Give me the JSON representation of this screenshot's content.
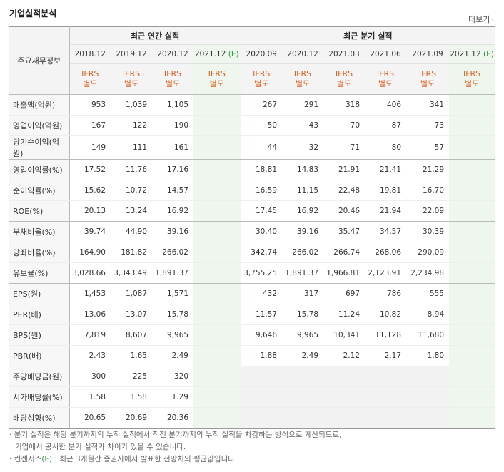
{
  "header": {
    "title": "기업실적분석",
    "more_label": "더보기"
  },
  "table": {
    "corner_label": "주요재무정보",
    "annual_label": "최근 연간 실적",
    "quarter_label": "최근 분기 실적",
    "periods": [
      "2018.12",
      "2019.12",
      "2020.12",
      "2021.12",
      "2020.09",
      "2020.12",
      "2021.03",
      "2021.06",
      "2021.09",
      "2021.12"
    ],
    "estimate_mark": "(E)",
    "ifrs_top": "IFRS",
    "ifrs_bottom": "별도",
    "rows": [
      {
        "label": "매출액(억원)",
        "values": [
          "953",
          "1,039",
          "1,105",
          "",
          "267",
          "291",
          "318",
          "406",
          "341",
          ""
        ]
      },
      {
        "label": "영업이익(억원)",
        "values": [
          "167",
          "122",
          "190",
          "",
          "50",
          "43",
          "70",
          "87",
          "73",
          ""
        ]
      },
      {
        "label": "당기순이익(억원)",
        "values": [
          "149",
          "111",
          "161",
          "",
          "44",
          "32",
          "71",
          "80",
          "57",
          ""
        ]
      },
      {
        "label": "영업이익률(%)",
        "values": [
          "17.52",
          "11.76",
          "17.16",
          "",
          "18.81",
          "14.83",
          "21.91",
          "21.41",
          "21.29",
          ""
        ]
      },
      {
        "label": "순이익률(%)",
        "values": [
          "15.62",
          "10.72",
          "14.57",
          "",
          "16.59",
          "11.15",
          "22.48",
          "19.81",
          "16.70",
          ""
        ]
      },
      {
        "label": "ROE(%)",
        "values": [
          "20.13",
          "13.24",
          "16.92",
          "",
          "17.45",
          "16.92",
          "20.46",
          "21.94",
          "22.09",
          ""
        ]
      },
      {
        "label": "부채비율(%)",
        "values": [
          "39.74",
          "44.90",
          "39.16",
          "",
          "30.40",
          "39.16",
          "35.47",
          "34.57",
          "30.39",
          ""
        ]
      },
      {
        "label": "당좌비율(%)",
        "values": [
          "164.90",
          "181.82",
          "266.02",
          "",
          "342.74",
          "266.02",
          "266.74",
          "268.06",
          "290.09",
          ""
        ]
      },
      {
        "label": "유보율(%)",
        "values": [
          "3,028.66",
          "3,343.49",
          "1,891.37",
          "",
          "3,755.25",
          "1,891.37",
          "1,966.81",
          "2,123.91",
          "2,234.98",
          ""
        ]
      },
      {
        "label": "EPS(원)",
        "values": [
          "1,453",
          "1,087",
          "1,571",
          "",
          "432",
          "317",
          "697",
          "786",
          "555",
          ""
        ]
      },
      {
        "label": "PER(배)",
        "values": [
          "13.06",
          "13.07",
          "15.78",
          "",
          "11.57",
          "15.78",
          "11.24",
          "10.82",
          "8.94",
          ""
        ]
      },
      {
        "label": "BPS(원)",
        "values": [
          "7,819",
          "8,607",
          "9,965",
          "",
          "9,646",
          "9,965",
          "10,341",
          "11,128",
          "11,680",
          ""
        ]
      },
      {
        "label": "PBR(배)",
        "values": [
          "2.43",
          "1.65",
          "2.49",
          "",
          "1.88",
          "2.49",
          "2.12",
          "2.17",
          "1.80",
          ""
        ]
      },
      {
        "label": "주당배당금(원)",
        "values": [
          "300",
          "225",
          "320",
          "",
          "",
          "",
          "",
          "",
          "",
          ""
        ]
      },
      {
        "label": "시가배당률(%)",
        "values": [
          "1.58",
          "1.58",
          "1.29",
          "",
          "",
          "",
          "",
          "",
          "",
          ""
        ]
      },
      {
        "label": "배당성향(%)",
        "values": [
          "20.65",
          "20.69",
          "20.36",
          "",
          "",
          "",
          "",
          "",
          "",
          ""
        ]
      }
    ]
  },
  "notes": {
    "line1": "분기 실적은 해당 분기까지의 누적 실적에서 직전 분기까지의 누적 실적을 차감하는 방식으로 계산되므로,",
    "line2": "기업에서 공시한 분기 실적과 차이가 있을 수 있습니다.",
    "line3_prefix": "컨센서스",
    "line3_mark": "(E)",
    "line3_rest": " : 최근 3개월간 증권사에서 발표한 전망치의 평균값입니다."
  }
}
